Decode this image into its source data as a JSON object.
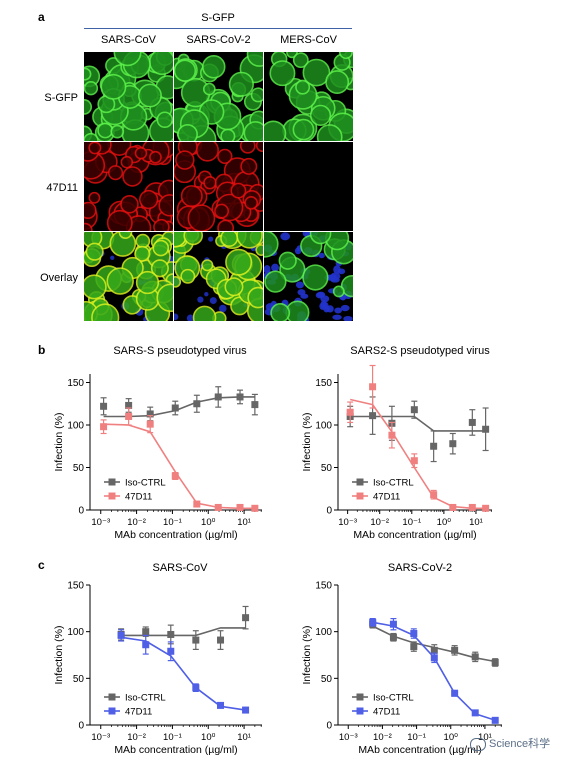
{
  "panel_a": {
    "letter": "a",
    "group_header": "S-GFP",
    "columns": [
      "SARS-CoV",
      "SARS-CoV-2",
      "MERS-CoV"
    ],
    "rows": [
      "S-GFP",
      "47D11",
      "Overlay"
    ]
  },
  "panel_b": {
    "letter": "b"
  },
  "panel_c": {
    "letter": "c"
  },
  "watermark": {
    "text": "Science科学"
  },
  "chart_data": [
    {
      "id": "b1",
      "type": "scatter",
      "title": "SARS-S pseudotyped virus",
      "xlabel": "MAb concentration (µg/ml)",
      "ylabel": "Infection (%)",
      "xscale": "log",
      "xticks": [
        "10⁻³",
        "10⁻²",
        "10⁻¹",
        "10⁰",
        "10¹"
      ],
      "yticks": [
        "0",
        "50",
        "100",
        "150"
      ],
      "ylim": [
        0,
        160
      ],
      "legend": "bottom-left",
      "series": [
        {
          "name": "Iso-CTRL",
          "color": "#666666",
          "x": [
            0.0012,
            0.006,
            0.024,
            0.12,
            0.48,
            1.9,
            7.7,
            20
          ],
          "y": [
            122,
            123,
            113,
            120,
            125,
            133,
            133,
            124
          ],
          "err": [
            10,
            8,
            8,
            8,
            10,
            12,
            8,
            12
          ],
          "fit": [
            110,
            110,
            111,
            117,
            127,
            132,
            133,
            133
          ]
        },
        {
          "name": "47D11",
          "color": "#f08080",
          "x": [
            0.0012,
            0.006,
            0.024,
            0.12,
            0.48,
            1.9,
            7.7,
            20
          ],
          "y": [
            98,
            110,
            101,
            40,
            7,
            3,
            3,
            2
          ],
          "err": [
            8,
            10,
            10,
            4,
            2,
            2,
            1,
            1
          ],
          "fit": [
            101,
            100,
            92,
            45,
            8,
            3,
            2,
            2
          ]
        }
      ]
    },
    {
      "id": "b2",
      "type": "scatter",
      "title": "SARS2-S pseudotyped virus",
      "xlabel": "MAb concentration (µg/ml)",
      "ylabel": "Infection (%)",
      "xscale": "log",
      "xticks": [
        "10⁻³",
        "10⁻²",
        "10⁻¹",
        "10⁰",
        "10¹"
      ],
      "yticks": [
        "0",
        "50",
        "100",
        "150"
      ],
      "ylim": [
        0,
        160
      ],
      "legend": "bottom-left",
      "series": [
        {
          "name": "Iso-CTRL",
          "color": "#666666",
          "x": [
            0.0012,
            0.006,
            0.024,
            0.12,
            0.48,
            1.9,
            7.7,
            20
          ],
          "y": [
            110,
            111,
            102,
            118,
            75,
            78,
            103,
            95
          ],
          "err": [
            12,
            22,
            20,
            10,
            18,
            12,
            15,
            25
          ],
          "fit": [
            110,
            110,
            110,
            110,
            93,
            93,
            93,
            93
          ]
        },
        {
          "name": "47D11",
          "color": "#f08080",
          "x": [
            0.0012,
            0.006,
            0.024,
            0.12,
            0.48,
            1.9,
            7.7,
            20
          ],
          "y": [
            115,
            145,
            88,
            58,
            18,
            3,
            3,
            2
          ],
          "err": [
            12,
            25,
            15,
            8,
            5,
            2,
            1,
            1
          ],
          "fit": [
            130,
            124,
            92,
            50,
            15,
            4,
            2,
            2
          ]
        }
      ]
    },
    {
      "id": "c1",
      "type": "scatter",
      "title": "SARS-CoV",
      "xlabel": "MAb concentration (µg/ml)",
      "ylabel": "Infection (%)",
      "xscale": "log",
      "xticks": [
        "10⁻³",
        "10⁻²",
        "10⁻¹",
        "10⁰",
        "10¹"
      ],
      "yticks": [
        "0",
        "50",
        "100",
        "150"
      ],
      "ylim": [
        0,
        150
      ],
      "legend": "bottom-left",
      "series": [
        {
          "name": "Iso-CTRL",
          "color": "#666666",
          "x": [
            0.0037,
            0.018,
            0.09,
            0.45,
            2.2,
            11
          ],
          "y": [
            97,
            100,
            97,
            91,
            91,
            115
          ],
          "err": [
            6,
            5,
            10,
            10,
            10,
            12
          ],
          "fit": [
            96,
            96,
            96,
            96,
            104,
            104
          ]
        },
        {
          "name": "47D11",
          "color": "#4f5fe6",
          "x": [
            0.0037,
            0.018,
            0.09,
            0.45,
            2.2,
            11
          ],
          "y": [
            96,
            86,
            79,
            40,
            21,
            16
          ],
          "err": [
            6,
            10,
            10,
            4,
            2,
            2
          ],
          "fit": [
            94,
            90,
            74,
            40,
            20,
            16
          ]
        }
      ]
    },
    {
      "id": "c2",
      "type": "scatter",
      "title": "SARS-CoV-2",
      "xlabel": "MAb concentration (µg/ml)",
      "ylabel": "Infection (%)",
      "xscale": "log",
      "xticks": [
        "10⁻³",
        "10⁻²",
        "10⁻¹",
        "10⁰",
        "10¹"
      ],
      "yticks": [
        "0",
        "50",
        "100",
        "150"
      ],
      "ylim": [
        0,
        150
      ],
      "legend": "bottom-left",
      "series": [
        {
          "name": "Iso-CTRL",
          "color": "#666666",
          "x": [
            0.0052,
            0.021,
            0.083,
            0.33,
            1.3,
            5.2,
            20
          ],
          "y": [
            108,
            94,
            84,
            80,
            80,
            73,
            67
          ],
          "err": [
            4,
            4,
            5,
            6,
            5,
            5,
            4
          ],
          "fit": [
            106,
            95,
            88,
            83,
            78,
            72,
            68
          ]
        },
        {
          "name": "47D11",
          "color": "#4f5fe6",
          "x": [
            0.0052,
            0.021,
            0.083,
            0.33,
            1.3,
            5.2,
            20
          ],
          "y": [
            110,
            108,
            98,
            72,
            34,
            13,
            5
          ],
          "err": [
            4,
            6,
            5,
            5,
            3,
            2,
            1
          ],
          "fit": [
            110,
            106,
            96,
            72,
            34,
            12,
            5
          ]
        }
      ]
    }
  ]
}
